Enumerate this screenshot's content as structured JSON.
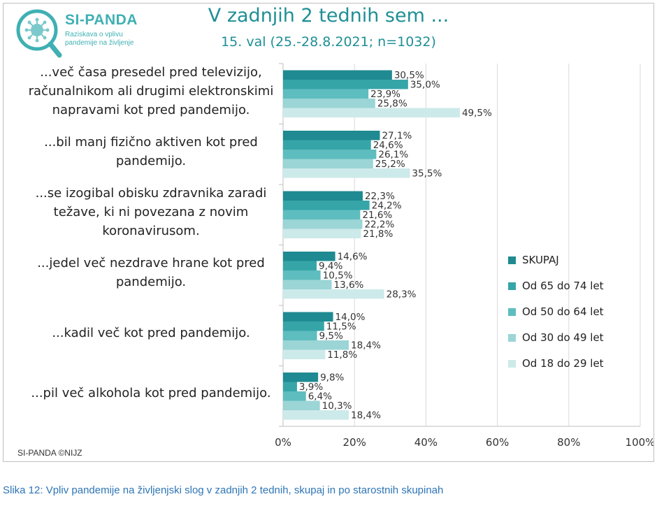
{
  "logo": {
    "name": "SI-PANDA",
    "subtitle_lines": [
      "Raziskava o vplivu",
      "pandemije na življenje"
    ]
  },
  "footer": "SI-PANDA ©NIJZ",
  "caption": "Slika 12: Vpliv pandemije na življenjski slog v zadnjih 2 tednih, skupaj in po starostnih skupinah",
  "chart_data": {
    "type": "bar",
    "orientation": "horizontal",
    "title": "V zadnjih 2 tednih sem ...",
    "subtitle": "15. val (25.-28.8.2021; n=1032)",
    "xlim": [
      0,
      100
    ],
    "xticks": [
      "0%",
      "20%",
      "40%",
      "60%",
      "80%",
      "100%"
    ],
    "grid": true,
    "legend_position": "right",
    "categories": [
      [
        "...več časa presedel pred televizijo,",
        "računalnikom ali drugimi elektronskimi",
        "napravami kot pred pandemijo."
      ],
      [
        "...bil manj fizično aktiven kot pred",
        "pandemijo."
      ],
      [
        "...se izogibal obisku zdravnika zaradi",
        "težave, ki ni povezana z novim",
        "koronavirusom."
      ],
      [
        "...jedel več nezdrave hrane kot pred",
        "pandemijo."
      ],
      [
        "...kadil več kot pred pandemijo."
      ],
      [
        "...pil več alkohola kot pred pandemijo."
      ]
    ],
    "series": [
      {
        "name": "SKUPAJ",
        "color": "#1f8a91",
        "values": [
          30.5,
          27.1,
          22.3,
          14.6,
          14.0,
          9.8
        ],
        "labels": [
          "30,5%",
          "27,1%",
          "22,3%",
          "14,6%",
          "14,0%",
          "9,8%"
        ]
      },
      {
        "name": "Od 65 do 74 let",
        "color": "#36a5a8",
        "values": [
          35.0,
          24.6,
          24.2,
          9.4,
          11.5,
          3.9
        ],
        "labels": [
          "35,0%",
          "24,6%",
          "24,2%",
          "9,4%",
          "11,5%",
          "3,9%"
        ]
      },
      {
        "name": "Od 50 do 64 let",
        "color": "#5ebdbf",
        "values": [
          23.9,
          26.1,
          21.6,
          10.5,
          9.5,
          6.4
        ],
        "labels": [
          "23,9%",
          "26,1%",
          "21,6%",
          "10,5%",
          "9,5%",
          "6,4%"
        ]
      },
      {
        "name": "Od 30 do 49 let",
        "color": "#9bd5d6",
        "values": [
          25.8,
          25.2,
          22.2,
          13.6,
          18.4,
          10.3
        ],
        "labels": [
          "25,8%",
          "25,2%",
          "22,2%",
          "13,6%",
          "18,4%",
          "10,3%"
        ]
      },
      {
        "name": "Od 18 do 29 let",
        "color": "#cdeaea",
        "values": [
          49.5,
          35.5,
          21.8,
          28.3,
          11.8,
          18.4
        ],
        "labels": [
          "49,5%",
          "35,5%",
          "21,8%",
          "28,3%",
          "11,8%",
          "18,4%"
        ]
      }
    ]
  }
}
